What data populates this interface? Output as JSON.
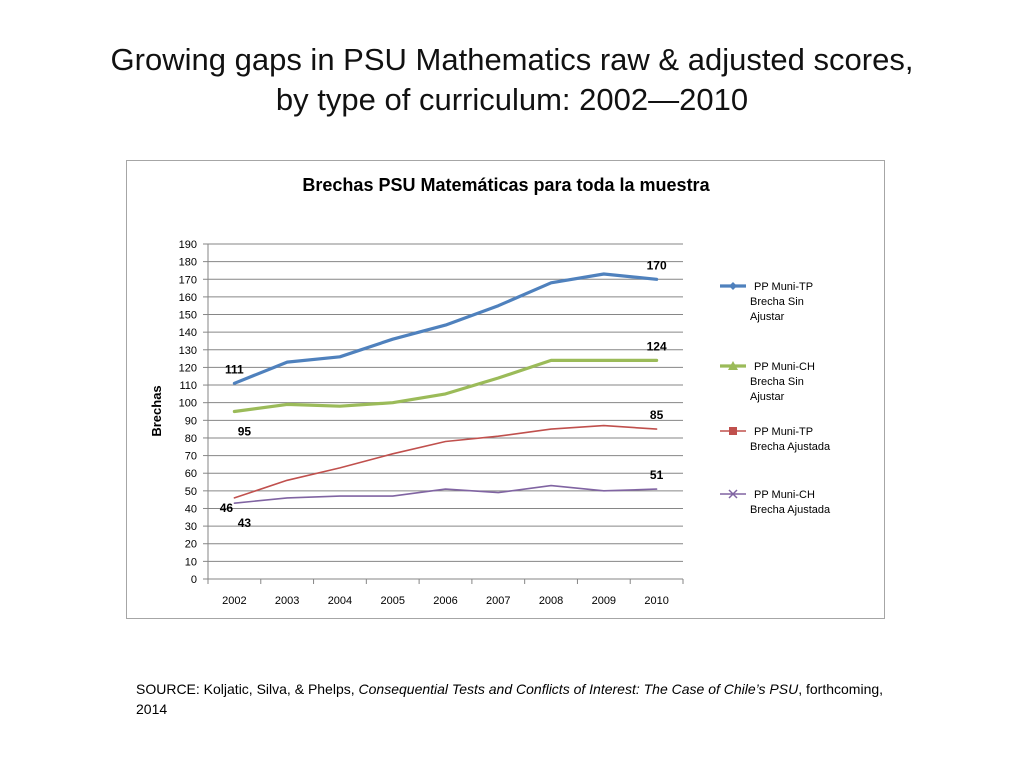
{
  "slide": {
    "title_line1": "Growing gaps in PSU Mathematics raw & adjusted scores,",
    "title_line2": "by type of curriculum: 2002—2010"
  },
  "source": {
    "prefix": "SOURCE: Koljatic, Silva, & Phelps, ",
    "book": "Consequential Tests and Conflicts of Interest: The Case of Chile’s PSU",
    "suffix": ", forthcoming, 2014"
  },
  "chart_data": {
    "type": "line",
    "title": "Brechas PSU Matemáticas para toda la muestra",
    "xlabel": "",
    "ylabel": "Brechas",
    "categories": [
      "2002",
      "2003",
      "2004",
      "2005",
      "2006",
      "2007",
      "2008",
      "2009",
      "2010"
    ],
    "ylim": [
      0,
      190
    ],
    "ytick_step": 10,
    "grid": true,
    "legend_position": "right",
    "series": [
      {
        "name": "PP Muni-TP Brecha Sin Ajustar",
        "color": "#4f81bd",
        "marker": "diamond",
        "values": [
          111,
          123,
          126,
          136,
          144,
          155,
          168,
          173,
          170
        ],
        "labels": [
          {
            "index": 0,
            "text": "111",
            "pos": "above"
          },
          {
            "index": 8,
            "text": "170",
            "pos": "above"
          }
        ]
      },
      {
        "name": "PP Muni-CH Brecha Sin Ajustar",
        "color": "#9bbb59",
        "marker": "triangle",
        "values": [
          95,
          99,
          98,
          100,
          105,
          114,
          124,
          124,
          124
        ],
        "labels": [
          {
            "index": 0,
            "text": "95",
            "pos": "below"
          },
          {
            "index": 8,
            "text": "124",
            "pos": "above"
          }
        ]
      },
      {
        "name": "PP Muni-TP Brecha Ajustada",
        "color": "#c0504d",
        "marker": "square",
        "values": [
          46,
          56,
          63,
          71,
          78,
          81,
          85,
          87,
          85
        ],
        "labels": [
          {
            "index": 0,
            "text": "46",
            "pos": "belowleft"
          },
          {
            "index": 8,
            "text": "85",
            "pos": "above"
          }
        ]
      },
      {
        "name": "PP Muni-CH Brecha Ajustada",
        "color": "#8064a2",
        "marker": "x",
        "values": [
          43,
          46,
          47,
          47,
          51,
          49,
          53,
          50,
          51
        ],
        "labels": [
          {
            "index": 0,
            "text": "43",
            "pos": "below"
          },
          {
            "index": 8,
            "text": "51",
            "pos": "above"
          }
        ]
      }
    ]
  }
}
